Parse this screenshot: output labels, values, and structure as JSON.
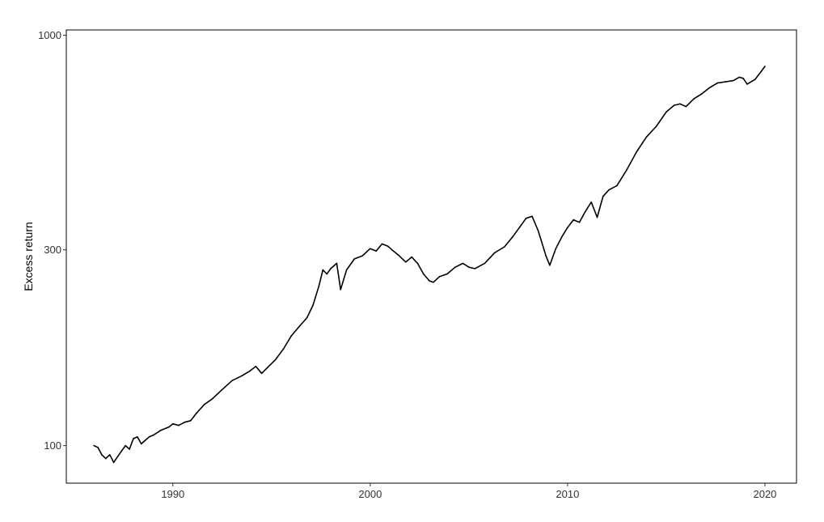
{
  "chart_data": {
    "type": "line",
    "title": "",
    "xlabel": "",
    "ylabel": "Excess return",
    "y_scale": "log",
    "xlim": [
      1984.6,
      2021.6
    ],
    "ylim": [
      81,
      1030
    ],
    "x_ticks": [
      1990,
      2000,
      2010,
      2020
    ],
    "y_ticks": [
      100,
      300,
      1000
    ],
    "grid": false,
    "line_color": "#000000",
    "series": [
      {
        "x": [
          1986.0,
          1986.2,
          1986.4,
          1986.6,
          1986.8,
          1987.0,
          1987.2,
          1987.4,
          1987.6,
          1987.8,
          1988.0,
          1988.2,
          1988.4,
          1988.6,
          1988.8,
          1989.0,
          1989.4,
          1989.8,
          1990.0,
          1990.3,
          1990.6,
          1990.9,
          1991.2,
          1991.6,
          1992.0,
          1992.5,
          1993.0,
          1993.5,
          1993.9,
          1994.2,
          1994.5,
          1994.8,
          1995.2,
          1995.6,
          1996.0,
          1996.4,
          1996.8,
          1997.1,
          1997.4,
          1997.6,
          1997.8,
          1998.0,
          1998.3,
          1998.5,
          1998.8,
          1999.2,
          1999.6,
          2000.0,
          2000.3,
          2000.6,
          2000.9,
          2001.1,
          2001.4,
          2001.8,
          2002.1,
          2002.4,
          2002.7,
          2003.0,
          2003.2,
          2003.5,
          2003.9,
          2004.3,
          2004.7,
          2005.0,
          2005.3,
          2005.8,
          2006.3,
          2006.8,
          2007.2,
          2007.6,
          2007.9,
          2008.2,
          2008.5,
          2008.7,
          2008.9,
          2009.1,
          2009.4,
          2009.7,
          2010.0,
          2010.3,
          2010.6,
          2010.9,
          2011.2,
          2011.5,
          2011.8,
          2012.1,
          2012.5,
          2013.0,
          2013.5,
          2014.0,
          2014.5,
          2015.0,
          2015.4,
          2015.7,
          2016.0,
          2016.4,
          2016.8,
          2017.2,
          2017.6,
          2018.0,
          2018.4,
          2018.7,
          2018.9,
          2019.1,
          2019.5,
          2019.8,
          2020.0
        ],
        "y": [
          100,
          99,
          95,
          93,
          95,
          91,
          94,
          97,
          100,
          98,
          104,
          105,
          101,
          103,
          105,
          106,
          109,
          111,
          113,
          112,
          114,
          115,
          120,
          126,
          130,
          137,
          144,
          148,
          152,
          156,
          150,
          155,
          162,
          172,
          185,
          195,
          205,
          220,
          245,
          268,
          262,
          270,
          278,
          240,
          268,
          285,
          290,
          302,
          298,
          310,
          306,
          300,
          292,
          280,
          288,
          278,
          262,
          252,
          250,
          258,
          262,
          272,
          278,
          272,
          270,
          278,
          295,
          305,
          322,
          342,
          358,
          362,
          335,
          312,
          290,
          275,
          302,
          322,
          340,
          355,
          350,
          372,
          392,
          360,
          405,
          420,
          430,
          470,
          520,
          565,
          600,
          650,
          675,
          680,
          670,
          700,
          720,
          745,
          765,
          770,
          775,
          790,
          785,
          760,
          780,
          815,
          840
        ]
      }
    ]
  }
}
